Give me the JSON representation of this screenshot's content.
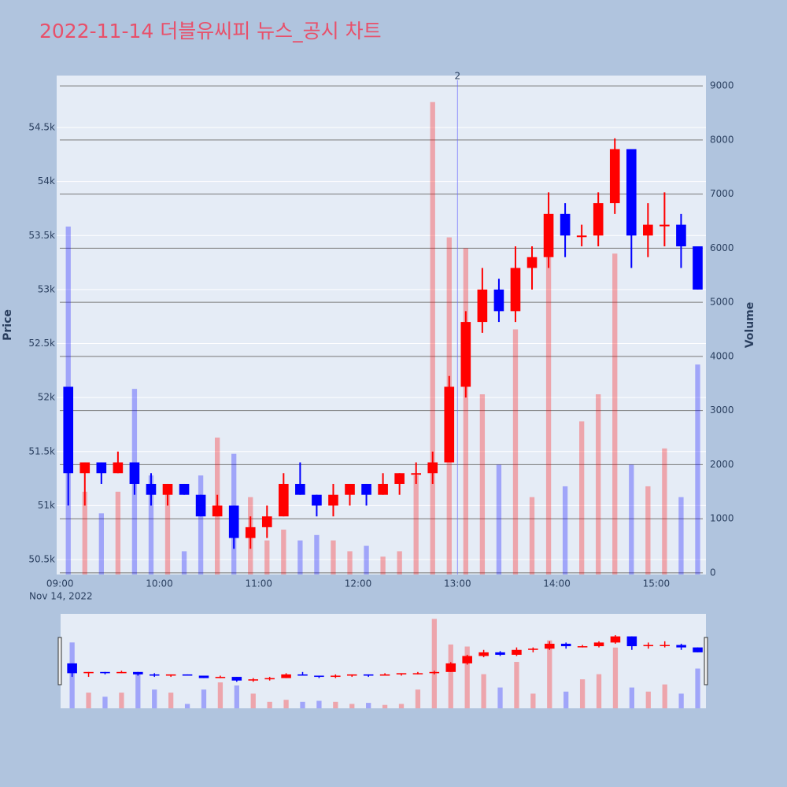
{
  "chart_data": {
    "type": "candlestick",
    "title": "2022-11-14 더블유씨피 뉴스_공시 차트",
    "x": [
      "2022-11-14 09:00",
      "2022-11-14 09:10",
      "2022-11-14 09:20",
      "2022-11-14 09:30",
      "2022-11-14 09:40",
      "2022-11-14 09:50",
      "2022-11-14 10:00",
      "2022-11-14 10:10",
      "2022-11-14 10:20",
      "2022-11-14 10:30",
      "2022-11-14 10:40",
      "2022-11-14 10:50",
      "2022-11-14 11:00",
      "2022-11-14 11:10",
      "2022-11-14 11:20",
      "2022-11-14 11:30",
      "2022-11-14 11:40",
      "2022-11-14 11:50",
      "2022-11-14 12:00",
      "2022-11-14 12:10",
      "2022-11-14 12:20",
      "2022-11-14 12:30",
      "2022-11-14 12:40",
      "2022-11-14 12:50",
      "2022-11-14 13:00",
      "2022-11-14 13:10",
      "2022-11-14 13:20",
      "2022-11-14 13:30",
      "2022-11-14 13:40",
      "2022-11-14 13:50",
      "2022-11-14 14:00",
      "2022-11-14 14:10",
      "2022-11-14 14:20",
      "2022-11-14 14:30",
      "2022-11-14 14:40",
      "2022-11-14 14:50",
      "2022-11-14 15:00",
      "2022-11-14 15:10",
      "2022-11-14 15:20"
    ],
    "open": [
      52100,
      51300,
      51400,
      51300,
      51400,
      51200,
      51100,
      51200,
      51100,
      50900,
      51000,
      50700,
      50800,
      50900,
      51200,
      51100,
      51000,
      51100,
      51200,
      51100,
      51200,
      51300,
      51300,
      51400,
      52100,
      52700,
      53000,
      52800,
      53200,
      53300,
      53700,
      53500,
      53500,
      53800,
      54300,
      53500,
      53600,
      53600,
      53400
    ],
    "high": [
      52100,
      51400,
      51400,
      51500,
      51400,
      51300,
      51200,
      51200,
      51100,
      51100,
      51000,
      50900,
      51000,
      51300,
      51400,
      51100,
      51200,
      51200,
      51200,
      51300,
      51300,
      51400,
      51500,
      52200,
      52800,
      53200,
      53100,
      53400,
      53400,
      53900,
      53800,
      53600,
      53900,
      54400,
      54300,
      53800,
      53900,
      53700,
      53400
    ],
    "low": [
      51000,
      51000,
      51200,
      51300,
      51100,
      51000,
      51000,
      51100,
      50900,
      50900,
      50600,
      50600,
      50700,
      50900,
      51100,
      50900,
      50900,
      51000,
      51000,
      51100,
      51100,
      51200,
      51200,
      51400,
      52000,
      52600,
      52700,
      52700,
      53000,
      53200,
      53300,
      53400,
      53400,
      53700,
      53200,
      53300,
      53400,
      53200,
      53000
    ],
    "close": [
      51300,
      51400,
      51300,
      51400,
      51200,
      51100,
      51200,
      51100,
      50900,
      51000,
      50700,
      50800,
      50900,
      51200,
      51100,
      51000,
      51100,
      51200,
      51100,
      51200,
      51300,
      51300,
      51400,
      52100,
      52700,
      53000,
      52800,
      53200,
      53300,
      53700,
      53500,
      53500,
      53800,
      54300,
      53500,
      53600,
      53600,
      53400,
      53000
    ],
    "volume": [
      6400,
      1500,
      1100,
      1500,
      3400,
      1800,
      1500,
      400,
      1800,
      2500,
      2200,
      1400,
      600,
      800,
      600,
      700,
      600,
      400,
      500,
      300,
      400,
      1800,
      8700,
      6200,
      6000,
      3300,
      2000,
      4500,
      1400,
      6600,
      1600,
      2800,
      3300,
      5900,
      2000,
      1600,
      2300,
      1400,
      3850
    ],
    "increasing_color": "#ff0000",
    "decreasing_color": "#0000ff",
    "xlim": [
      "2022-11-14 08:58",
      "2022-11-14 15:30"
    ],
    "xticks": [
      {
        "value": "2022-11-14 09:00",
        "label": "09:00"
      },
      {
        "value": "2022-11-14 10:00",
        "label": "10:00"
      },
      {
        "value": "2022-11-14 11:00",
        "label": "11:00"
      },
      {
        "value": "2022-11-14 12:00",
        "label": "12:00"
      },
      {
        "value": "2022-11-14 13:00",
        "label": "13:00"
      },
      {
        "value": "2022-11-14 14:00",
        "label": "14:00"
      },
      {
        "value": "2022-11-14 15:00",
        "label": "15:00"
      }
    ],
    "x_date_label": "Nov 14, 2022",
    "ylim": [
      50362,
      54981
    ],
    "yticks": [
      {
        "value": 50500,
        "label": "50.5k"
      },
      {
        "value": 51000,
        "label": "51k"
      },
      {
        "value": 51500,
        "label": "51.5k"
      },
      {
        "value": 52000,
        "label": "52k"
      },
      {
        "value": 52500,
        "label": "52.5k"
      },
      {
        "value": 53000,
        "label": "53k"
      },
      {
        "value": 53500,
        "label": "53.5k"
      },
      {
        "value": 54000,
        "label": "54k"
      },
      {
        "value": 54500,
        "label": "54.5k"
      }
    ],
    "y2lim": [
      -30,
      9190
    ],
    "y2ticks": [
      0,
      1000,
      2000,
      3000,
      4000,
      5000,
      6000,
      7000,
      8000,
      9000
    ],
    "y_title": "Price",
    "y2_title": "Volume",
    "annotation": {
      "x": "2022-11-14 13:00",
      "text": "2"
    },
    "rangeslider": true
  }
}
